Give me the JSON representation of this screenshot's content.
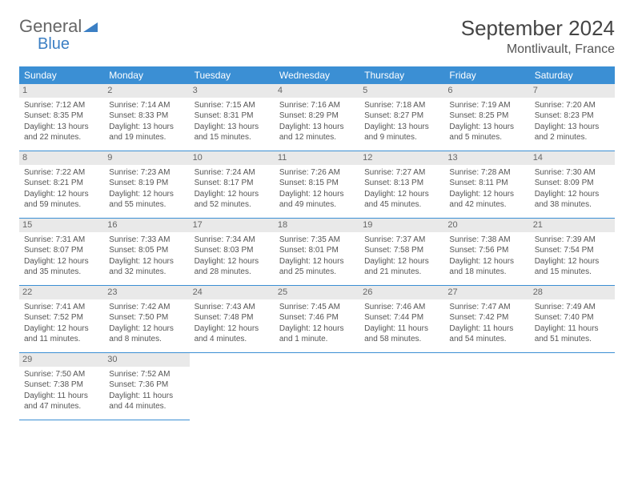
{
  "brand": {
    "part1": "General",
    "part2": "Blue"
  },
  "title": "September 2024",
  "location": "Montlivault, France",
  "header_bg": "#3b8fd4",
  "header_text": "#ffffff",
  "daynum_bg": "#e9e9e9",
  "row_border": "#3b8fd4",
  "text_color": "#555555",
  "columns": [
    "Sunday",
    "Monday",
    "Tuesday",
    "Wednesday",
    "Thursday",
    "Friday",
    "Saturday"
  ],
  "weeks": [
    [
      {
        "n": "1",
        "sr": "7:12 AM",
        "ss": "8:35 PM",
        "dl": "13 hours and 22 minutes."
      },
      {
        "n": "2",
        "sr": "7:14 AM",
        "ss": "8:33 PM",
        "dl": "13 hours and 19 minutes."
      },
      {
        "n": "3",
        "sr": "7:15 AM",
        "ss": "8:31 PM",
        "dl": "13 hours and 15 minutes."
      },
      {
        "n": "4",
        "sr": "7:16 AM",
        "ss": "8:29 PM",
        "dl": "13 hours and 12 minutes."
      },
      {
        "n": "5",
        "sr": "7:18 AM",
        "ss": "8:27 PM",
        "dl": "13 hours and 9 minutes."
      },
      {
        "n": "6",
        "sr": "7:19 AM",
        "ss": "8:25 PM",
        "dl": "13 hours and 5 minutes."
      },
      {
        "n": "7",
        "sr": "7:20 AM",
        "ss": "8:23 PM",
        "dl": "13 hours and 2 minutes."
      }
    ],
    [
      {
        "n": "8",
        "sr": "7:22 AM",
        "ss": "8:21 PM",
        "dl": "12 hours and 59 minutes."
      },
      {
        "n": "9",
        "sr": "7:23 AM",
        "ss": "8:19 PM",
        "dl": "12 hours and 55 minutes."
      },
      {
        "n": "10",
        "sr": "7:24 AM",
        "ss": "8:17 PM",
        "dl": "12 hours and 52 minutes."
      },
      {
        "n": "11",
        "sr": "7:26 AM",
        "ss": "8:15 PM",
        "dl": "12 hours and 49 minutes."
      },
      {
        "n": "12",
        "sr": "7:27 AM",
        "ss": "8:13 PM",
        "dl": "12 hours and 45 minutes."
      },
      {
        "n": "13",
        "sr": "7:28 AM",
        "ss": "8:11 PM",
        "dl": "12 hours and 42 minutes."
      },
      {
        "n": "14",
        "sr": "7:30 AM",
        "ss": "8:09 PM",
        "dl": "12 hours and 38 minutes."
      }
    ],
    [
      {
        "n": "15",
        "sr": "7:31 AM",
        "ss": "8:07 PM",
        "dl": "12 hours and 35 minutes."
      },
      {
        "n": "16",
        "sr": "7:33 AM",
        "ss": "8:05 PM",
        "dl": "12 hours and 32 minutes."
      },
      {
        "n": "17",
        "sr": "7:34 AM",
        "ss": "8:03 PM",
        "dl": "12 hours and 28 minutes."
      },
      {
        "n": "18",
        "sr": "7:35 AM",
        "ss": "8:01 PM",
        "dl": "12 hours and 25 minutes."
      },
      {
        "n": "19",
        "sr": "7:37 AM",
        "ss": "7:58 PM",
        "dl": "12 hours and 21 minutes."
      },
      {
        "n": "20",
        "sr": "7:38 AM",
        "ss": "7:56 PM",
        "dl": "12 hours and 18 minutes."
      },
      {
        "n": "21",
        "sr": "7:39 AM",
        "ss": "7:54 PM",
        "dl": "12 hours and 15 minutes."
      }
    ],
    [
      {
        "n": "22",
        "sr": "7:41 AM",
        "ss": "7:52 PM",
        "dl": "12 hours and 11 minutes."
      },
      {
        "n": "23",
        "sr": "7:42 AM",
        "ss": "7:50 PM",
        "dl": "12 hours and 8 minutes."
      },
      {
        "n": "24",
        "sr": "7:43 AM",
        "ss": "7:48 PM",
        "dl": "12 hours and 4 minutes."
      },
      {
        "n": "25",
        "sr": "7:45 AM",
        "ss": "7:46 PM",
        "dl": "12 hours and 1 minute."
      },
      {
        "n": "26",
        "sr": "7:46 AM",
        "ss": "7:44 PM",
        "dl": "11 hours and 58 minutes."
      },
      {
        "n": "27",
        "sr": "7:47 AM",
        "ss": "7:42 PM",
        "dl": "11 hours and 54 minutes."
      },
      {
        "n": "28",
        "sr": "7:49 AM",
        "ss": "7:40 PM",
        "dl": "11 hours and 51 minutes."
      }
    ],
    [
      {
        "n": "29",
        "sr": "7:50 AM",
        "ss": "7:38 PM",
        "dl": "11 hours and 47 minutes."
      },
      {
        "n": "30",
        "sr": "7:52 AM",
        "ss": "7:36 PM",
        "dl": "11 hours and 44 minutes."
      },
      null,
      null,
      null,
      null,
      null
    ]
  ],
  "labels": {
    "sunrise": "Sunrise:",
    "sunset": "Sunset:",
    "daylight": "Daylight:"
  }
}
